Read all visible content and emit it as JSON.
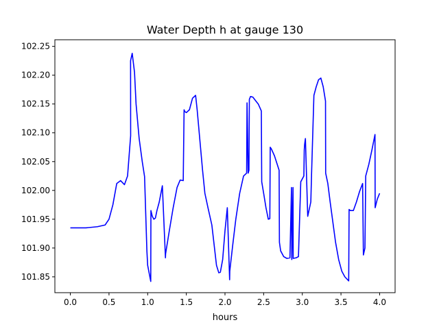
{
  "chart_data": {
    "type": "line",
    "title": "Water Depth h at gauge 130",
    "xlabel": "hours",
    "ylabel": "",
    "xlim": [
      -0.2,
      4.2
    ],
    "ylim": [
      101.8225,
      102.2615
    ],
    "xticks": [
      0.0,
      0.5,
      1.0,
      1.5,
      2.0,
      2.5,
      3.0,
      3.5,
      4.0
    ],
    "xtick_labels": [
      "0.0",
      "0.5",
      "1.0",
      "1.5",
      "2.0",
      "2.5",
      "3.0",
      "3.5",
      "4.0"
    ],
    "yticks": [
      101.85,
      101.9,
      101.95,
      102.0,
      102.05,
      102.1,
      102.15,
      102.2,
      102.25
    ],
    "ytick_labels": [
      "101.85",
      "101.90",
      "101.95",
      "102.00",
      "102.05",
      "102.10",
      "102.15",
      "102.20",
      "102.25"
    ],
    "grid": false,
    "legend": "none",
    "series": [
      {
        "color": "#0000ff",
        "x": [
          0.0,
          0.2,
          0.35,
          0.45,
          0.5,
          0.55,
          0.6,
          0.65,
          0.7,
          0.74,
          0.78,
          0.779,
          0.8,
          0.83,
          0.85,
          0.89,
          0.93,
          0.96,
          0.99,
          1.0,
          1.04,
          1.042,
          1.06,
          1.08,
          1.1,
          1.12,
          1.15,
          1.19,
          1.23,
          1.232,
          1.28,
          1.33,
          1.38,
          1.42,
          1.46,
          1.471,
          1.48,
          1.5,
          1.54,
          1.58,
          1.62,
          1.64,
          1.68,
          1.71,
          1.74,
          1.78,
          1.83,
          1.86,
          1.89,
          1.92,
          1.94,
          1.97,
          2.0,
          2.03,
          2.06,
          2.062,
          2.1,
          2.14,
          2.19,
          2.24,
          2.28,
          2.285,
          2.3,
          2.31,
          2.315,
          2.33,
          2.36,
          2.4,
          2.43,
          2.47,
          2.475,
          2.5,
          2.53,
          2.56,
          2.58,
          2.585,
          2.6,
          2.64,
          2.7,
          2.704,
          2.72,
          2.76,
          2.8,
          2.84,
          2.86,
          2.864,
          2.88,
          2.882,
          2.92,
          2.95,
          2.98,
          3.02,
          3.025,
          3.03,
          3.04,
          3.07,
          3.11,
          3.12,
          3.15,
          3.18,
          3.21,
          3.24,
          3.27,
          3.3,
          3.302,
          3.33,
          3.36,
          3.4,
          3.43,
          3.47,
          3.51,
          3.55,
          3.6,
          3.605,
          3.62,
          3.66,
          3.7,
          3.74,
          3.78,
          3.79,
          3.81,
          3.82,
          3.86,
          3.9,
          3.94,
          3.942,
          3.97,
          4.0
        ],
        "y": [
          101.935,
          101.935,
          101.937,
          101.94,
          101.95,
          101.975,
          102.012,
          102.017,
          102.01,
          102.025,
          102.095,
          102.225,
          102.238,
          102.205,
          102.15,
          102.09,
          102.05,
          102.024,
          101.895,
          101.87,
          101.842,
          101.965,
          101.955,
          101.95,
          101.952,
          101.965,
          101.98,
          102.008,
          101.883,
          101.89,
          101.93,
          101.97,
          102.005,
          102.018,
          102.017,
          102.14,
          102.137,
          102.135,
          102.14,
          102.16,
          102.165,
          102.14,
          102.08,
          102.035,
          101.995,
          101.97,
          101.94,
          101.905,
          101.87,
          101.857,
          101.858,
          101.88,
          101.93,
          101.97,
          101.845,
          101.86,
          101.905,
          101.95,
          101.995,
          102.025,
          102.03,
          102.152,
          102.03,
          102.035,
          102.158,
          102.163,
          102.162,
          102.155,
          102.15,
          102.138,
          102.015,
          101.995,
          101.97,
          101.95,
          101.951,
          102.075,
          102.072,
          102.06,
          102.035,
          101.91,
          101.895,
          101.885,
          101.882,
          101.883,
          102.005,
          101.88,
          102.005,
          101.882,
          101.883,
          101.885,
          102.015,
          102.025,
          102.07,
          102.08,
          102.09,
          101.955,
          101.98,
          102.03,
          102.165,
          102.18,
          102.192,
          102.195,
          102.18,
          102.155,
          102.03,
          102.012,
          101.98,
          101.94,
          101.91,
          101.88,
          101.86,
          101.85,
          101.843,
          101.967,
          101.965,
          101.965,
          101.98,
          101.998,
          102.012,
          101.888,
          101.9,
          102.025,
          102.045,
          102.07,
          102.097,
          101.97,
          101.985,
          101.995
        ]
      }
    ]
  }
}
